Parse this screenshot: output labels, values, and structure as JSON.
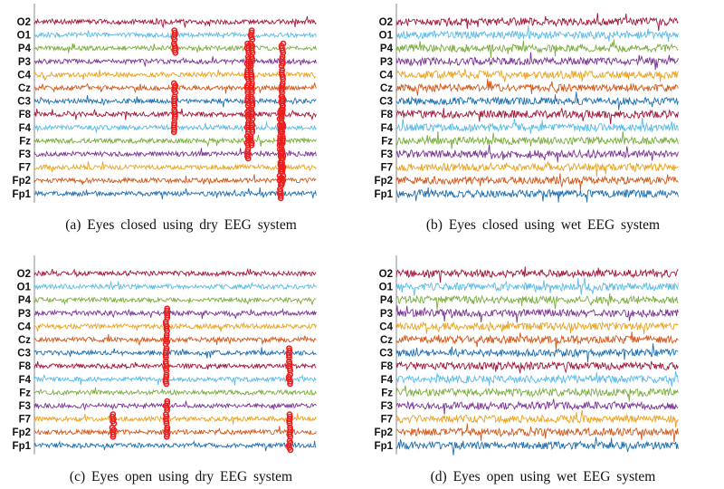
{
  "channels": [
    "O2",
    "O1",
    "P4",
    "P3",
    "C4",
    "Cz",
    "C3",
    "F8",
    "F4",
    "Fz",
    "F3",
    "F7",
    "Fp2",
    "Fp1"
  ],
  "channel_colors": [
    "#a3173b",
    "#5bbbe8",
    "#7aad3e",
    "#7b3494",
    "#eba21f",
    "#d2581b",
    "#1f6fb0",
    "#a3173b",
    "#5bbbe8",
    "#7aad3e",
    "#7b3494",
    "#eba21f",
    "#d2581b",
    "#1f6fb0"
  ],
  "artifact_color": "#ee1c1c",
  "chart_data": [
    {
      "type": "line",
      "caption": "(a)  Eyes  closed  using  dry  EEG  system",
      "series": [
        "O2",
        "O1",
        "P4",
        "P3",
        "C4",
        "Cz",
        "C3",
        "F8",
        "F4",
        "Fz",
        "F3",
        "F7",
        "Fp2",
        "Fp1"
      ],
      "artifacts_marked": true
    },
    {
      "type": "line",
      "caption": "(b)  Eyes  closed  using  wet  EEG  system",
      "series": [
        "O2",
        "O1",
        "P4",
        "P3",
        "C4",
        "Cz",
        "C3",
        "F8",
        "F4",
        "Fz",
        "F3",
        "F7",
        "Fp2",
        "Fp1"
      ],
      "artifacts_marked": false
    },
    {
      "type": "line",
      "caption": "(c)  Eyes  open  using  dry  EEG  system",
      "series": [
        "O2",
        "O1",
        "P4",
        "P3",
        "C4",
        "Cz",
        "C3",
        "F8",
        "F4",
        "Fz",
        "F3",
        "F7",
        "Fp2",
        "Fp1"
      ],
      "artifacts_marked": true
    },
    {
      "type": "line",
      "caption": "(d)  Eyes  open  using  wet  EEG  system",
      "series": [
        "O2",
        "O1",
        "P4",
        "P3",
        "C4",
        "Cz",
        "C3",
        "F8",
        "F4",
        "Fz",
        "F3",
        "F7",
        "Fp2",
        "Fp1"
      ],
      "artifacts_marked": false
    }
  ]
}
